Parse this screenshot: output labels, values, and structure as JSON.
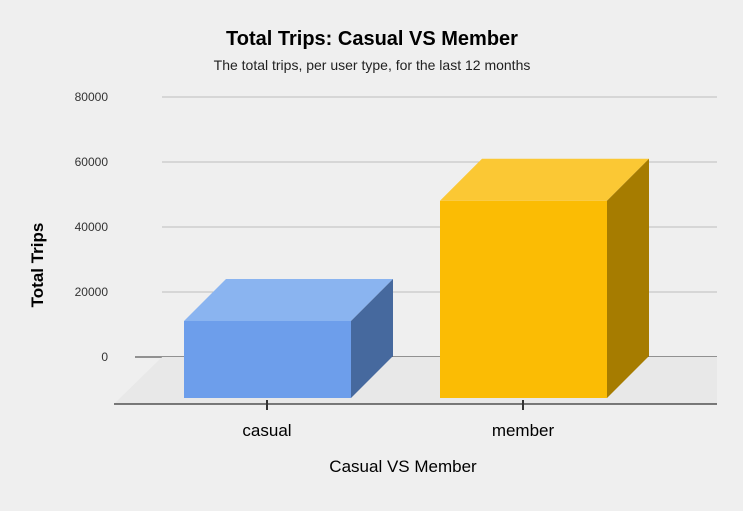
{
  "chart_data": {
    "type": "bar",
    "title": "Total Trips: Casual VS Member",
    "subtitle": "The total trips, per user type, for the last 12 months",
    "xlabel": "Casual VS Member",
    "ylabel": "Total Trips",
    "categories": [
      "casual",
      "member"
    ],
    "values": [
      24000,
      61000
    ],
    "ylim": [
      0,
      80000
    ],
    "yticks": [
      "80000",
      "60000",
      "40000",
      "20000",
      "0"
    ],
    "ytick_values": [
      80000,
      60000,
      40000,
      20000,
      0
    ],
    "grid": true,
    "legend": "none",
    "style": "3d",
    "colors": [
      {
        "front": "#6d9eeb",
        "top": "#8ab4f0",
        "side": "#46699e"
      },
      {
        "front": "#fbbc04",
        "top": "#fbc834",
        "side": "#a67c00"
      }
    ]
  }
}
